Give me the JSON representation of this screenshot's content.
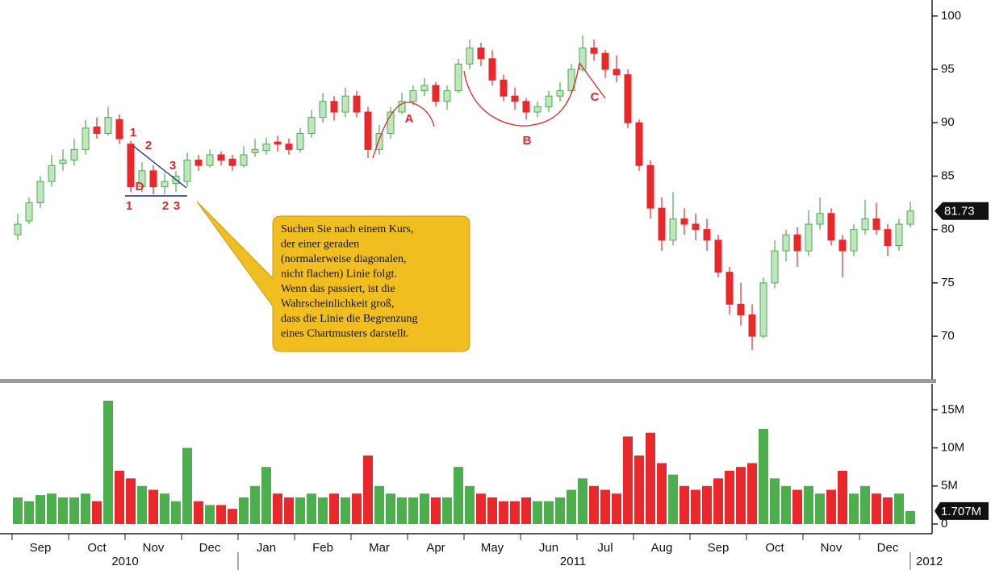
{
  "chart_data": {
    "type": "candlestick",
    "x": [
      "Sep",
      "Sep",
      "Sep",
      "Sep",
      "Sep",
      "Oct",
      "Oct",
      "Oct",
      "Oct",
      "Oct",
      "Nov",
      "Nov",
      "Nov",
      "Nov",
      "Nov",
      "Dec",
      "Dec",
      "Dec",
      "Dec",
      "Dec",
      "Jan",
      "Jan",
      "Jan",
      "Jan",
      "Jan",
      "Feb",
      "Feb",
      "Feb",
      "Feb",
      "Feb",
      "Mar",
      "Mar",
      "Mar",
      "Mar",
      "Mar",
      "Apr",
      "Apr",
      "Apr",
      "Apr",
      "Apr",
      "May",
      "May",
      "May",
      "May",
      "May",
      "Jun",
      "Jun",
      "Jun",
      "Jun",
      "Jun",
      "Jul",
      "Jul",
      "Jul",
      "Jul",
      "Jul",
      "Aug",
      "Aug",
      "Aug",
      "Aug",
      "Aug",
      "Sep",
      "Sep",
      "Sep",
      "Sep",
      "Sep",
      "Oct",
      "Oct",
      "Oct",
      "Oct",
      "Oct",
      "Nov",
      "Nov",
      "Nov",
      "Nov",
      "Nov",
      "Dec",
      "Dec",
      "Dec",
      "Dec",
      "Dec"
    ],
    "open": [
      79.5,
      80.8,
      82.5,
      84.5,
      86.2,
      86.5,
      87.5,
      89.6,
      89,
      90.3,
      88,
      84,
      85.5,
      84,
      84.3,
      84.5,
      86.5,
      86,
      87,
      86.6,
      86,
      87.2,
      87.4,
      88.2,
      88,
      87.5,
      89,
      90.5,
      92,
      91,
      92.5,
      91,
      87.5,
      89,
      91,
      92,
      93,
      93.5,
      92,
      93,
      95.5,
      97,
      96,
      94,
      92.5,
      92,
      91,
      91.5,
      92.5,
      93,
      95,
      97,
      96.5,
      95,
      94.5,
      90,
      86,
      82,
      79,
      81,
      80.5,
      80,
      79,
      76,
      73,
      72,
      70,
      75,
      78,
      79.5,
      78,
      80.5,
      81.5,
      79,
      78,
      80,
      81,
      80,
      78.5,
      80.5
    ],
    "high": [
      81.5,
      83,
      85,
      87,
      87.5,
      88.5,
      90.3,
      90.5,
      91.5,
      90.8,
      88.3,
      86.3,
      86,
      85.3,
      85.5,
      87.2,
      87,
      87.5,
      87.3,
      87,
      87.8,
      88.5,
      88.6,
      88.8,
      88.5,
      89.5,
      91.2,
      92.8,
      92.5,
      93.3,
      93,
      91.5,
      89.8,
      91.5,
      92.8,
      93.5,
      94.2,
      93.8,
      93.5,
      96,
      97.8,
      97.5,
      96.8,
      94.5,
      93.3,
      92.3,
      92,
      93,
      93.8,
      95.5,
      98.2,
      97.8,
      96.8,
      96.3,
      95,
      90.3,
      86.5,
      83,
      83.5,
      82,
      81.5,
      81,
      79.5,
      76.5,
      75,
      73,
      75.5,
      79,
      80,
      80.2,
      81.8,
      83,
      82,
      79.5,
      80.5,
      82.8,
      82.5,
      80.5,
      81,
      82.6
    ],
    "low": [
      79,
      80.5,
      82,
      84,
      85.5,
      86,
      87,
      88.5,
      88.8,
      88,
      83.5,
      83.5,
      83.3,
      83.3,
      83.5,
      84,
      85.5,
      85.8,
      86,
      85.5,
      85.8,
      86.8,
      87,
      87.3,
      87,
      87.2,
      88.6,
      90,
      90.2,
      90.5,
      90.5,
      86.7,
      87,
      88.5,
      90.8,
      91.6,
      92.5,
      91.5,
      91.2,
      92.8,
      95,
      95.3,
      93.5,
      92,
      91.2,
      90.3,
      90.5,
      91,
      92,
      92.8,
      94.8,
      95.8,
      94.2,
      93.8,
      89.5,
      85.5,
      81,
      78,
      78.5,
      79.5,
      79,
      78,
      75.5,
      72,
      71,
      68.7,
      69.8,
      74.5,
      77,
      76.5,
      77.5,
      80,
      78.5,
      75.5,
      77.5,
      79.5,
      79.5,
      77.5,
      78,
      80.2
    ],
    "close": [
      80.5,
      82.5,
      84.5,
      86,
      86.5,
      87.5,
      89.5,
      89,
      90.5,
      88.5,
      84,
      85.5,
      84,
      84.5,
      85,
      86.5,
      86,
      87,
      86.5,
      86,
      87,
      87.5,
      88,
      88,
      87.5,
      89,
      90.5,
      92,
      91,
      92.5,
      91,
      87.5,
      89,
      91,
      92,
      93,
      93.5,
      92,
      93,
      95.5,
      97,
      96,
      94,
      92.5,
      92,
      91,
      91.5,
      92.5,
      93,
      95,
      97,
      96.5,
      95,
      94.5,
      90,
      86,
      82,
      79,
      81,
      80.5,
      80,
      79,
      76,
      73,
      72,
      70,
      75,
      78,
      79.5,
      78,
      80.5,
      81.5,
      79,
      78,
      80,
      81,
      80,
      78.5,
      80.5,
      81.73
    ],
    "volume": [
      3.5,
      3,
      3.8,
      4,
      3.5,
      3.5,
      4,
      3,
      16.2,
      7,
      6,
      5,
      4.5,
      4,
      3,
      10,
      3,
      2.5,
      2.5,
      2,
      3.5,
      5,
      7.5,
      4,
      3.5,
      3.5,
      4,
      3.5,
      4,
      3.5,
      4,
      9,
      5,
      4,
      3.5,
      3.5,
      4,
      3.5,
      3.5,
      7.5,
      5,
      4,
      3.5,
      3,
      3,
      3.5,
      3,
      3,
      3.5,
      4.5,
      6,
      5,
      4.5,
      4,
      11.5,
      9,
      12,
      8,
      6.5,
      5,
      4.5,
      5,
      6,
      7,
      7.5,
      8,
      12.5,
      6,
      5,
      4.5,
      5,
      4,
      4.5,
      7,
      4,
      5,
      4,
      3.5,
      4,
      1.707
    ],
    "ylim": [
      66,
      101.5
    ],
    "yticks": [
      70,
      75,
      80,
      85,
      90,
      95,
      100
    ],
    "volume_ylim": [
      0,
      18
    ],
    "volume_yticks": [
      0,
      {
        "value": 5,
        "label": "5M"
      },
      {
        "value": 10,
        "label": "10M"
      },
      {
        "value": 15,
        "label": "15M"
      }
    ],
    "up_color": "#4cae4c",
    "down_color": "#e8282b",
    "last_price": 81.73,
    "last_volume": {
      "value": 1.707,
      "label": "1.707M"
    },
    "years": [
      "2010",
      "2011",
      "2012"
    ],
    "annotations": [
      "1",
      "2",
      "3",
      "D",
      "1",
      "2",
      "3",
      "A",
      "B",
      "C"
    ],
    "callout": [
      "Suchen Sie nach einem Kurs,",
      "der einer geraden",
      "(normalerweise diagonalen,",
      "nicht flachen) Linie folgt.",
      "Wenn das passiert, ist die",
      "Wahrscheinlichkeit groß,",
      "dass die Linie die Begrenzung",
      "eines Chartmusters darstellt."
    ]
  }
}
